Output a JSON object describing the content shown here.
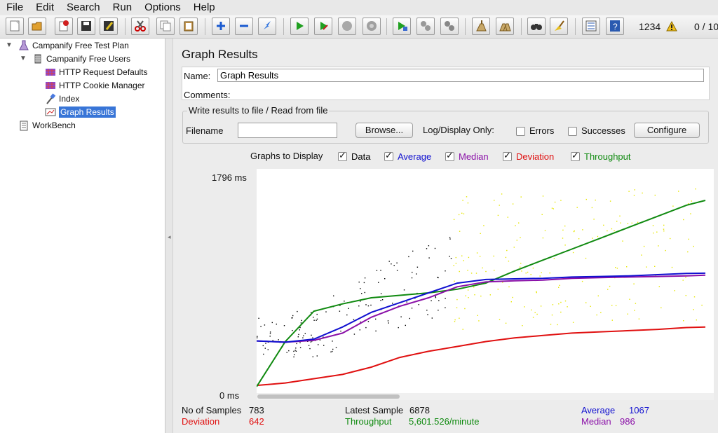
{
  "menu": [
    "File",
    "Edit",
    "Search",
    "Run",
    "Options",
    "Help"
  ],
  "toolbar": {
    "buttons": [
      "new-icon",
      "open-icon",
      "close-icon",
      "save-icon",
      "save-as-icon",
      "cut-icon",
      "copy-icon",
      "paste-icon",
      "expand-icon",
      "collapse-icon",
      "toggle-icon",
      "start-icon",
      "start-no-pause-icon",
      "stop-icon",
      "shutdown-icon",
      "remote-start-icon",
      "remote-stop-icon",
      "remote-shutdown-icon",
      "clear-icon",
      "clear-all-icon",
      "search-icon",
      "reset-search-icon",
      "function-helper-icon",
      "help-icon"
    ],
    "error_count": "1234",
    "threads": "0 / 10"
  },
  "tree": {
    "items": [
      {
        "label": "Campanify Free Test Plan",
        "icon": "test-plan-icon"
      },
      {
        "label": "Campanify Free Users",
        "icon": "thread-group-icon"
      },
      {
        "label": "HTTP Request Defaults",
        "icon": "config-element-icon"
      },
      {
        "label": "HTTP Cookie Manager",
        "icon": "config-element-icon"
      },
      {
        "label": "Index",
        "icon": "sampler-icon"
      },
      {
        "label": "Graph Results",
        "icon": "listener-icon",
        "selected": true
      },
      {
        "label": "WorkBench",
        "icon": "workbench-icon"
      }
    ]
  },
  "main": {
    "title": "Graph Results",
    "name_label": "Name:",
    "name_value": "Graph Results",
    "comments_label": "Comments:",
    "file_group_title": "Write results to file / Read from file",
    "filename_label": "Filename",
    "filename_value": "",
    "browse_label": "Browse...",
    "log_display_label": "Log/Display Only:",
    "errors_label": "Errors",
    "successes_label": "Successes",
    "configure_label": "Configure",
    "graphs_to_display_label": "Graphs to Display",
    "graph_toggles": [
      {
        "label": "Data",
        "checked": true,
        "color": "#000000"
      },
      {
        "label": "Average",
        "checked": true,
        "color": "#1010d0"
      },
      {
        "label": "Median",
        "checked": true,
        "color": "#8a10a8"
      },
      {
        "label": "Deviation",
        "checked": true,
        "color": "#e01010"
      },
      {
        "label": "Throughput",
        "checked": true,
        "color": "#108a10"
      }
    ]
  },
  "chart_data": {
    "type": "line",
    "y_max_label": "1796 ms",
    "y_min_label": "0 ms",
    "ylim": [
      0,
      1796
    ],
    "x": [
      0,
      50,
      100,
      150,
      200,
      250,
      300,
      350,
      400,
      450,
      500,
      550,
      600,
      650,
      700,
      750,
      783
    ],
    "series": [
      {
        "name": "Average",
        "color": "#1010d0",
        "values": [
          405,
          395,
          420,
          520,
          640,
          720,
          800,
          880,
          910,
          915,
          920,
          930,
          935,
          940,
          950,
          960,
          962
        ]
      },
      {
        "name": "Median",
        "color": "#8a10a8",
        "values": [
          405,
          395,
          410,
          470,
          600,
          690,
          760,
          850,
          890,
          900,
          905,
          920,
          925,
          930,
          935,
          940,
          945
        ]
      },
      {
        "name": "Deviation",
        "color": "#e01010",
        "values": [
          40,
          60,
          95,
          130,
          190,
          270,
          320,
          360,
          400,
          430,
          450,
          470,
          480,
          490,
          500,
          515,
          520
        ]
      },
      {
        "name": "Throughput",
        "color": "#108a10",
        "values": [
          30,
          400,
          650,
          710,
          760,
          780,
          800,
          830,
          880,
          980,
          1070,
          1160,
          1250,
          1340,
          1430,
          1520,
          1560
        ]
      }
    ],
    "data_points_color": "#000000",
    "data_points_late_color": "#e6e600"
  },
  "stats": {
    "samples_label": "No of Samples",
    "samples_value": "783",
    "latest_label": "Latest Sample",
    "latest_value": "6878",
    "average_label": "Average",
    "average_value": "1067",
    "deviation_label": "Deviation",
    "deviation_value": "642",
    "throughput_label": "Throughput",
    "throughput_value": "5,601.526/minute",
    "median_label": "Median",
    "median_value": "986",
    "colors": {
      "deviation": "#e01010",
      "throughput": "#108a10",
      "average": "#1010d0",
      "median": "#8a10a8"
    }
  }
}
